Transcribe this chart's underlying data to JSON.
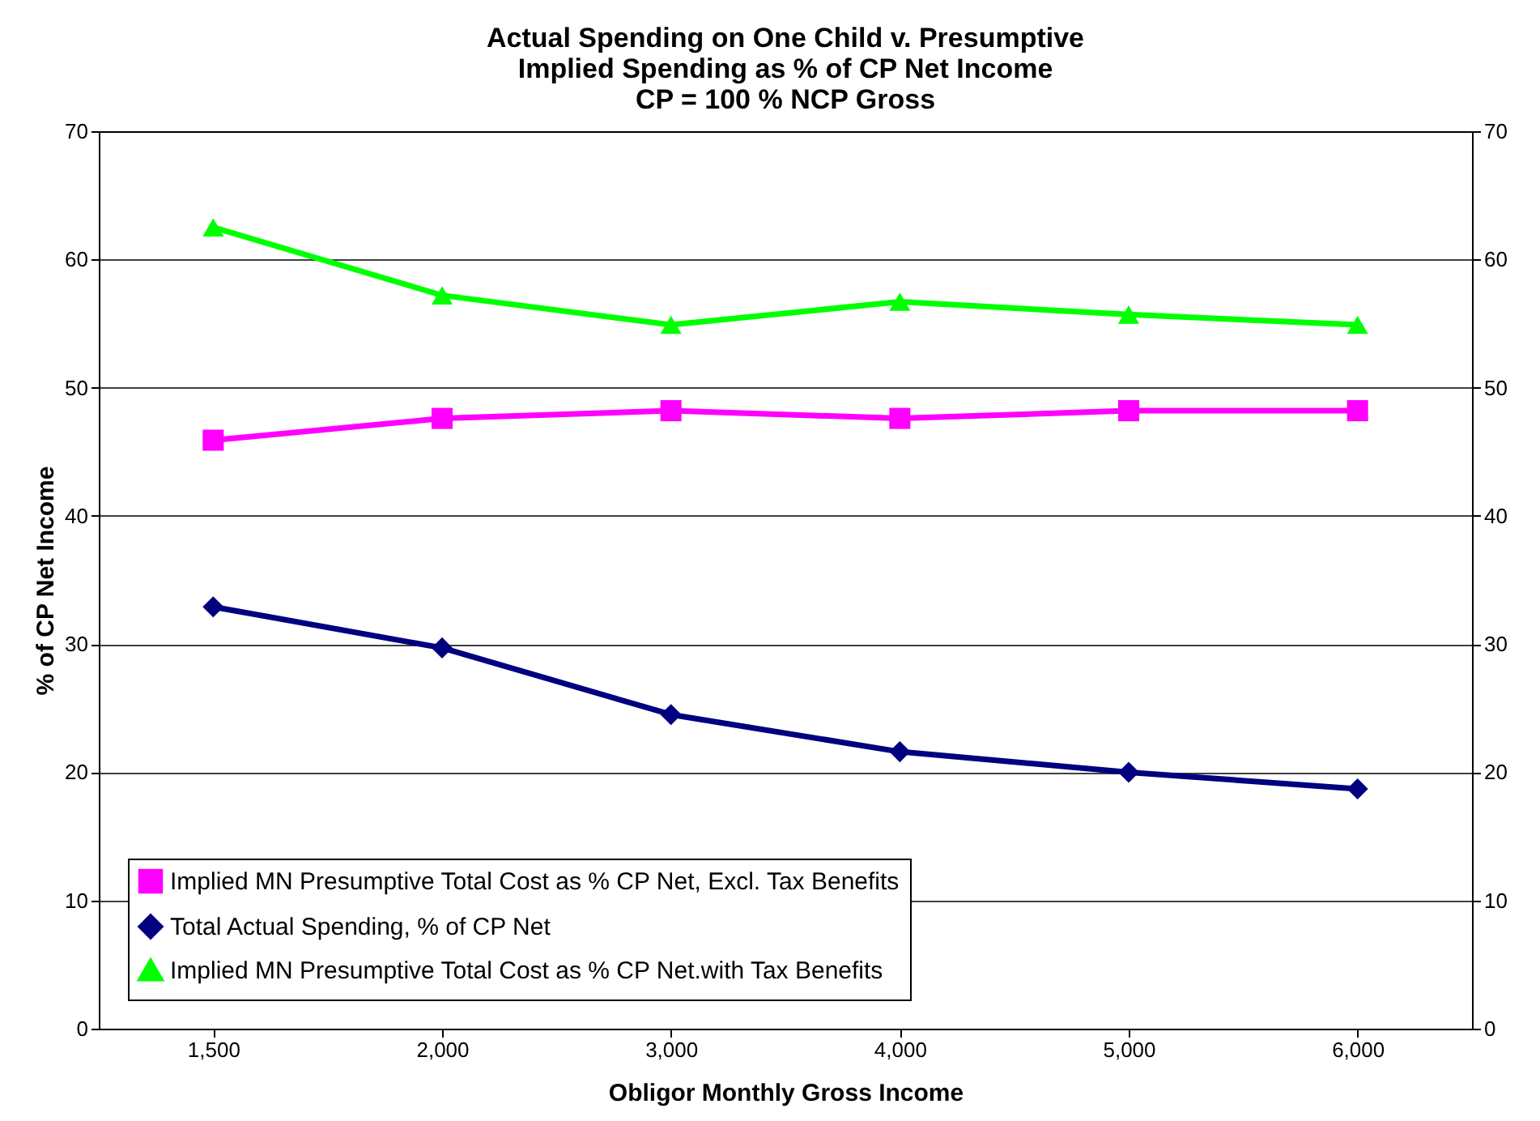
{
  "chart_data": {
    "type": "line",
    "title": [
      "Actual Spending on One Child v. Presumptive",
      "Implied Spending as % of CP Net Income",
      "CP = 100 % NCP Gross"
    ],
    "xlabel": "Obligor Monthly Gross Income",
    "ylabel": "% of CP Net Income",
    "categories": [
      "1,500",
      "2,000",
      "3,000",
      "4,000",
      "5,000",
      "6,000"
    ],
    "series": [
      {
        "name": "Implied MN Presumptive Total Cost as % CP Net, Excl. Tax Benefits",
        "color": "#ff00ff",
        "marker": "square",
        "values": [
          45.9,
          47.6,
          48.2,
          47.6,
          48.2,
          48.2
        ]
      },
      {
        "name": "Total Actual Spending, % of CP Net",
        "color": "#000080",
        "marker": "diamond",
        "values": [
          32.9,
          29.7,
          24.5,
          21.6,
          20.0,
          18.7
        ]
      },
      {
        "name": "Implied MN Presumptive Total Cost as % CP Net.with Tax Benefits",
        "color": "#00ff00",
        "marker": "triangle",
        "values": [
          62.5,
          57.2,
          54.9,
          56.7,
          55.7,
          54.9
        ]
      }
    ],
    "ylim": [
      0,
      70
    ],
    "yticks": [
      0,
      10,
      20,
      30,
      40,
      50,
      60,
      70
    ],
    "y2lim": [
      0,
      70
    ],
    "y2ticks": [
      0,
      10,
      20,
      30,
      40,
      50,
      60,
      70
    ],
    "grid": "y",
    "legend": "bottom left",
    "line_style": "solid"
  }
}
